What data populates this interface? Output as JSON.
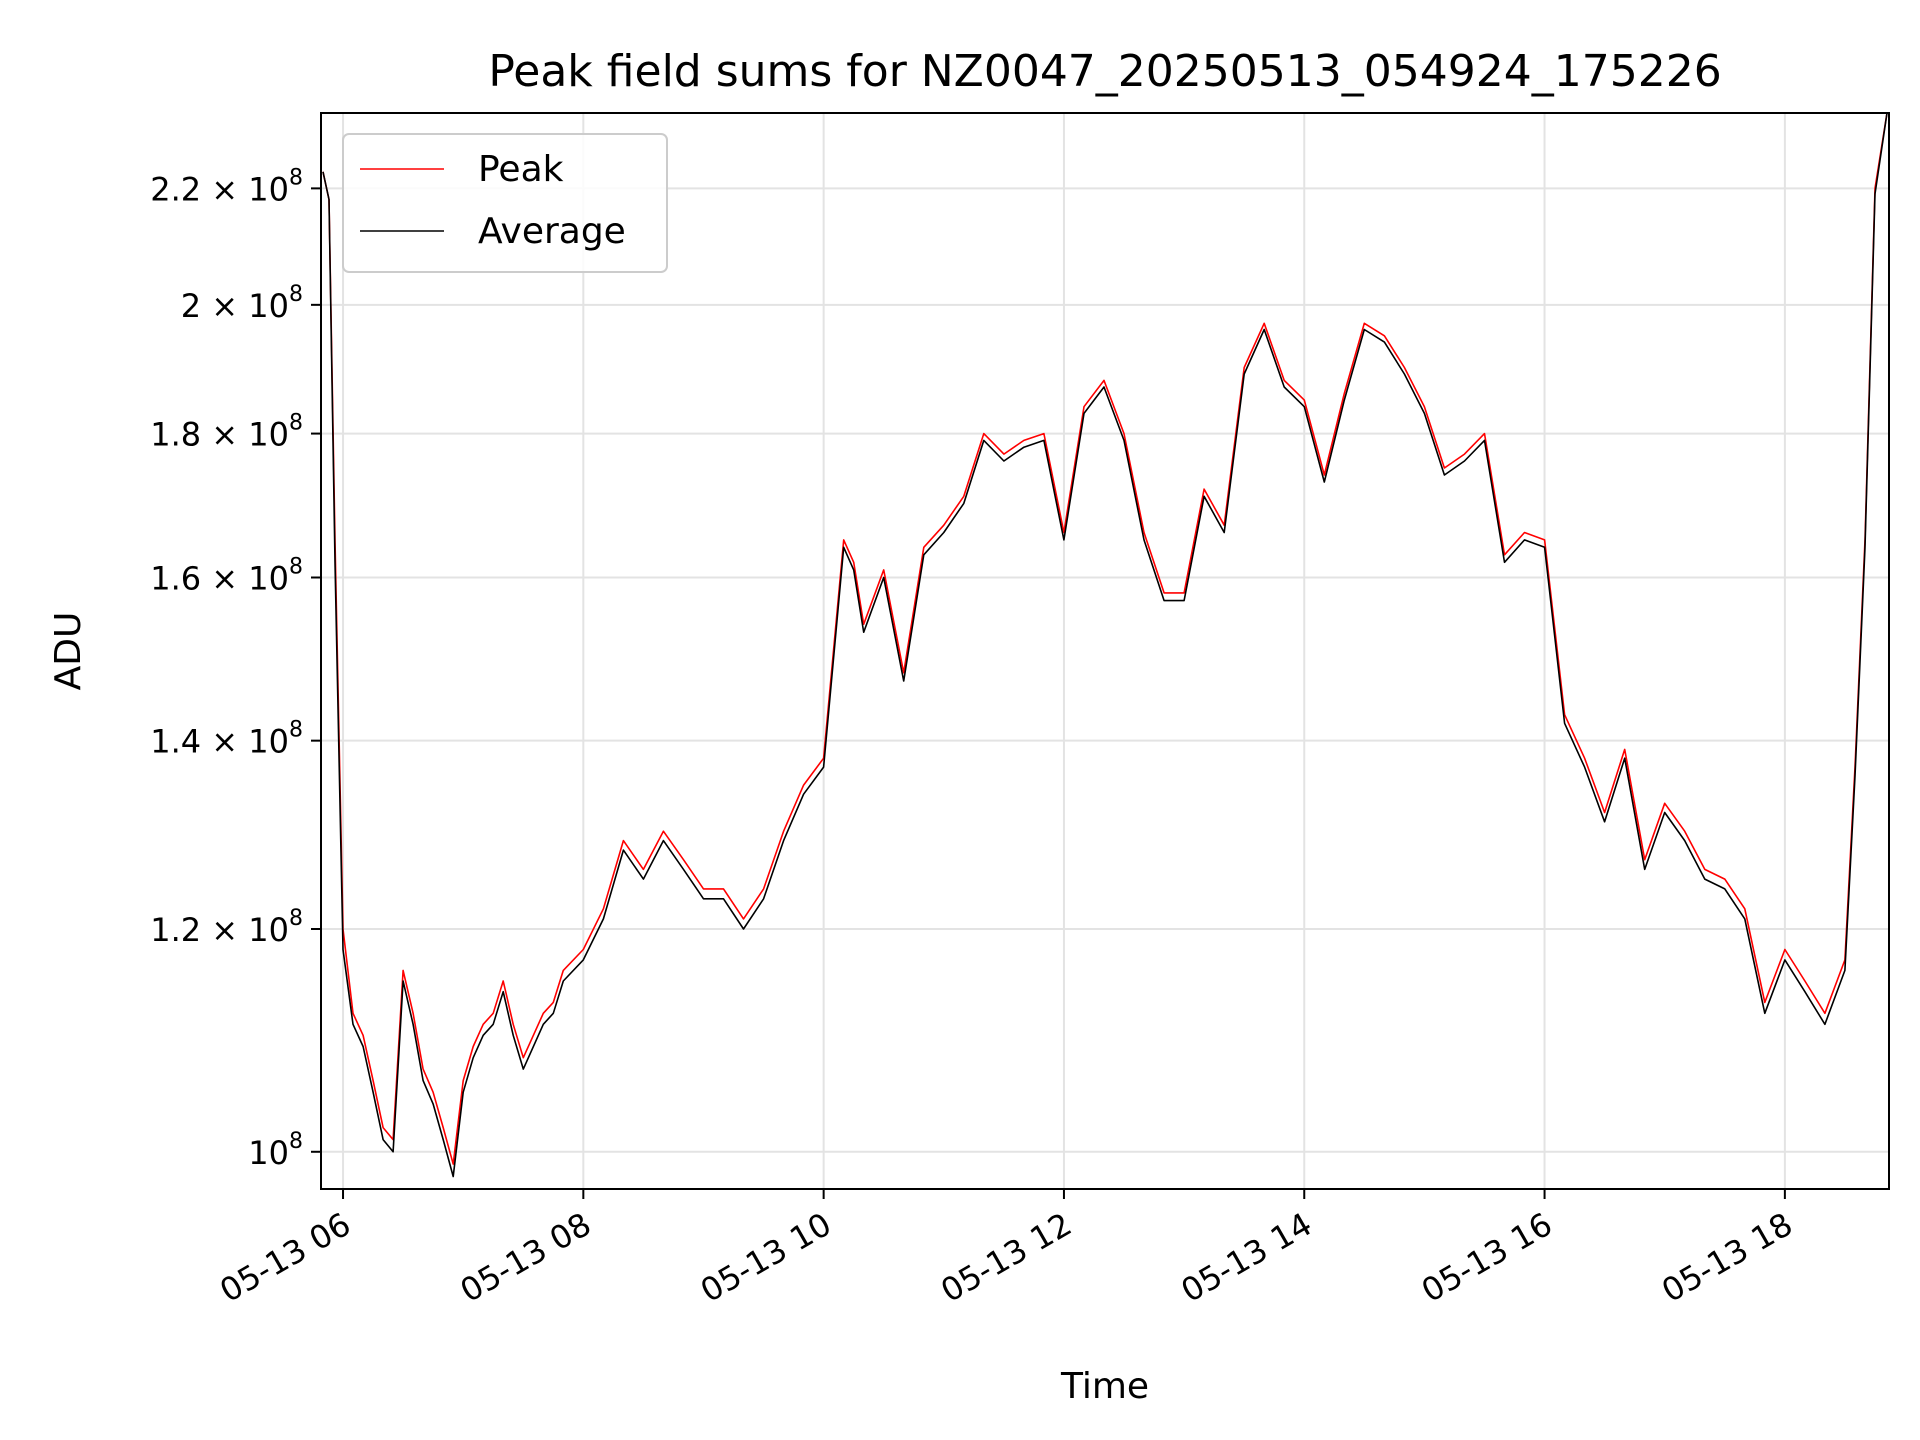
{
  "chart_data": {
    "type": "line",
    "title": "Peak field sums for NZ0047_20250513_054924_175226",
    "xlabel": "Time",
    "ylabel": "ADU",
    "y_scale": "log",
    "grid": true,
    "legend_placement": "top-left",
    "xlim": [
      "2025-05-13 05:49",
      "2025-05-13 18:52"
    ],
    "ylim": [
      97000000,
      234000000
    ],
    "x_ticks": [
      "05-13 06",
      "05-13 08",
      "05-13 10",
      "05-13 12",
      "05-13 14",
      "05-13 16",
      "05-13 18"
    ],
    "y_ticks": [
      {
        "value": 100000000,
        "mantissa": "",
        "exp": "8"
      },
      {
        "value": 120000000,
        "mantissa": "1.2",
        "exp": "8"
      },
      {
        "value": 140000000,
        "mantissa": "1.4",
        "exp": "8"
      },
      {
        "value": 160000000,
        "mantissa": "1.6",
        "exp": "8"
      },
      {
        "value": 180000000,
        "mantissa": "1.8",
        "exp": "8"
      },
      {
        "value": 200000000,
        "mantissa": "2",
        "exp": "8"
      },
      {
        "value": 220000000,
        "mantissa": "2.2",
        "exp": "8"
      }
    ],
    "series": [
      {
        "name": "Peak",
        "color": "#ff0000",
        "x": [
          "05:50",
          "05:53",
          "05:56",
          "06:00",
          "06:05",
          "06:10",
          "06:15",
          "06:20",
          "06:25",
          "06:30",
          "06:35",
          "06:40",
          "06:45",
          "06:50",
          "06:55",
          "07:00",
          "07:05",
          "07:10",
          "07:15",
          "07:20",
          "07:25",
          "07:30",
          "07:40",
          "07:45",
          "07:50",
          "08:00",
          "08:10",
          "08:20",
          "08:30",
          "08:40",
          "08:50",
          "09:00",
          "09:10",
          "09:20",
          "09:30",
          "09:40",
          "09:50",
          "10:00",
          "10:10",
          "10:15",
          "10:20",
          "10:30",
          "10:40",
          "10:50",
          "11:00",
          "11:10",
          "11:20",
          "11:30",
          "11:40",
          "11:50",
          "12:00",
          "12:10",
          "12:20",
          "12:30",
          "12:40",
          "12:50",
          "13:00",
          "13:10",
          "13:20",
          "13:30",
          "13:40",
          "13:50",
          "14:00",
          "14:10",
          "14:20",
          "14:30",
          "14:40",
          "14:50",
          "15:00",
          "15:10",
          "15:20",
          "15:30",
          "15:40",
          "15:50",
          "16:00",
          "16:10",
          "16:20",
          "16:30",
          "16:40",
          "16:50",
          "17:00",
          "17:10",
          "17:20",
          "17:30",
          "17:40",
          "17:50",
          "18:00",
          "18:10",
          "18:20",
          "18:30",
          "18:35",
          "18:40",
          "18:45",
          "18:51"
        ],
        "values": [
          223000000,
          218000000,
          165000000,
          120000000,
          112000000,
          110000000,
          106000000,
          102000000,
          101000000,
          116000000,
          112000000,
          107000000,
          105000000,
          102000000,
          99000000,
          106000000,
          109000000,
          111000000,
          112000000,
          115000000,
          111000000,
          108000000,
          112000000,
          113000000,
          116000000,
          118000000,
          122000000,
          129000000,
          126000000,
          130000000,
          127000000,
          124000000,
          124000000,
          121000000,
          124000000,
          130000000,
          135000000,
          138000000,
          165000000,
          162000000,
          154000000,
          161000000,
          148000000,
          164000000,
          167000000,
          171000000,
          180000000,
          177000000,
          179000000,
          180000000,
          166000000,
          184000000,
          188000000,
          180000000,
          166000000,
          158000000,
          158000000,
          172000000,
          167000000,
          190000000,
          197000000,
          188000000,
          185000000,
          174000000,
          186000000,
          197000000,
          195000000,
          190000000,
          184000000,
          175000000,
          177000000,
          180000000,
          163000000,
          166000000,
          165000000,
          143000000,
          138000000,
          132000000,
          139000000,
          127000000,
          133000000,
          130000000,
          126000000,
          125000000,
          122000000,
          113000000,
          118000000,
          115000000,
          112000000,
          117000000,
          137000000,
          165000000,
          220000000,
          234000000
        ]
      },
      {
        "name": "Average",
        "color": "#000000",
        "x": [
          "05:50",
          "05:53",
          "05:56",
          "06:00",
          "06:05",
          "06:10",
          "06:15",
          "06:20",
          "06:25",
          "06:30",
          "06:35",
          "06:40",
          "06:45",
          "06:50",
          "06:55",
          "07:00",
          "07:05",
          "07:10",
          "07:15",
          "07:20",
          "07:25",
          "07:30",
          "07:40",
          "07:45",
          "07:50",
          "08:00",
          "08:10",
          "08:20",
          "08:30",
          "08:40",
          "08:50",
          "09:00",
          "09:10",
          "09:20",
          "09:30",
          "09:40",
          "09:50",
          "10:00",
          "10:10",
          "10:15",
          "10:20",
          "10:30",
          "10:40",
          "10:50",
          "11:00",
          "11:10",
          "11:20",
          "11:30",
          "11:40",
          "11:50",
          "12:00",
          "12:10",
          "12:20",
          "12:30",
          "12:40",
          "12:50",
          "13:00",
          "13:10",
          "13:20",
          "13:30",
          "13:40",
          "13:50",
          "14:00",
          "14:10",
          "14:20",
          "14:30",
          "14:40",
          "14:50",
          "15:00",
          "15:10",
          "15:20",
          "15:30",
          "15:40",
          "15:50",
          "16:00",
          "16:10",
          "16:20",
          "16:30",
          "16:40",
          "16:50",
          "17:00",
          "17:10",
          "17:20",
          "17:30",
          "17:40",
          "17:50",
          "18:00",
          "18:10",
          "18:20",
          "18:30",
          "18:35",
          "18:40",
          "18:45",
          "18:51"
        ],
        "values": [
          223000000,
          218000000,
          162000000,
          118000000,
          111000000,
          109000000,
          105000000,
          101000000,
          100000000,
          115000000,
          111000000,
          106000000,
          104000000,
          101000000,
          98000000,
          105000000,
          108000000,
          110000000,
          111000000,
          114000000,
          110000000,
          107000000,
          111000000,
          112000000,
          115000000,
          117000000,
          121000000,
          128000000,
          125000000,
          129000000,
          126000000,
          123000000,
          123000000,
          120000000,
          123000000,
          129000000,
          134000000,
          137000000,
          164000000,
          161000000,
          153000000,
          160000000,
          147000000,
          163000000,
          166000000,
          170000000,
          179000000,
          176000000,
          178000000,
          179000000,
          165000000,
          183000000,
          187000000,
          179000000,
          165000000,
          157000000,
          157000000,
          171000000,
          166000000,
          189000000,
          196000000,
          187000000,
          184000000,
          173000000,
          185000000,
          196000000,
          194000000,
          189000000,
          183000000,
          174000000,
          176000000,
          179000000,
          162000000,
          165000000,
          164000000,
          142000000,
          137000000,
          131000000,
          138000000,
          126000000,
          132000000,
          129000000,
          125000000,
          124000000,
          121000000,
          112000000,
          117000000,
          114000000,
          111000000,
          116000000,
          136000000,
          164000000,
          219000000,
          234000000
        ]
      }
    ]
  }
}
